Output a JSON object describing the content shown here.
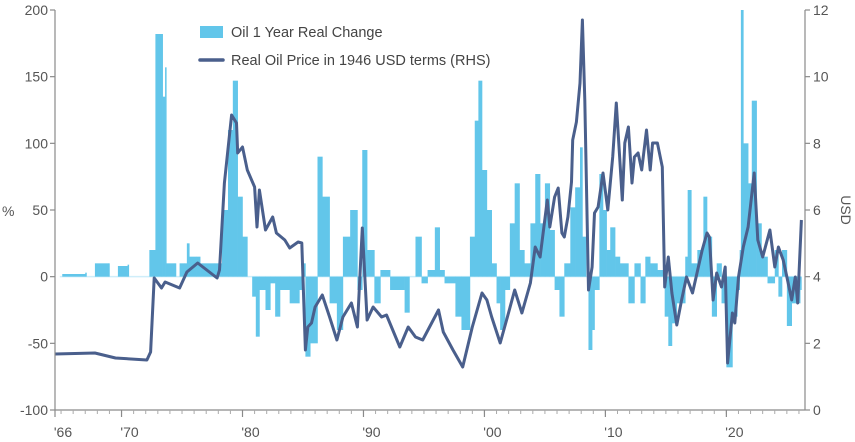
{
  "chart_data": {
    "type": "bar+line",
    "title": "",
    "xlabel": "",
    "ylabel": "%",
    "ylabel_right": "USD",
    "xlim": [
      1964.5,
      2026.5
    ],
    "ylim": [
      -100,
      200
    ],
    "ylim_right": [
      0,
      12
    ],
    "grid": false,
    "legend_placement": "top-center",
    "x_ticks": [
      {
        "value": 1964.5,
        "label": "'66"
      },
      {
        "value": 1970,
        "label": "'70"
      },
      {
        "value": 1980,
        "label": "'80"
      },
      {
        "value": 1990,
        "label": "'90"
      },
      {
        "value": 2000,
        "label": "'00"
      },
      {
        "value": 2010,
        "label": "'10"
      },
      {
        "value": 2020,
        "label": "'20"
      }
    ],
    "y_ticks_left": [
      "-100",
      "-50",
      "0",
      "50",
      "100",
      "150",
      "200"
    ],
    "y_ticks_right": [
      "0",
      "2",
      "4",
      "6",
      "8",
      "10",
      "12"
    ],
    "colors": {
      "bars": "#62C6EA",
      "line": "#4A5F8C",
      "axis": "#8a8a8a"
    },
    "series": [
      {
        "name": "Oil 1 Year Real Change",
        "type": "bar",
        "axis": "left",
        "points": [
          [
            1964.9,
            0
          ],
          [
            1965.1,
            2
          ],
          [
            1967.0,
            3
          ],
          [
            1967.1,
            0
          ],
          [
            1967.7,
            0
          ],
          [
            1967.8,
            10
          ],
          [
            1968.9,
            10
          ],
          [
            1969.0,
            0
          ],
          [
            1969.6,
            0
          ],
          [
            1969.7,
            8
          ],
          [
            1970.5,
            9
          ],
          [
            1970.6,
            0
          ],
          [
            1972.2,
            0
          ],
          [
            1972.3,
            20
          ],
          [
            1972.7,
            20
          ],
          [
            1972.8,
            182
          ],
          [
            1973.3,
            182
          ],
          [
            1973.4,
            135
          ],
          [
            1973.6,
            157
          ],
          [
            1973.7,
            10
          ],
          [
            1974.4,
            10
          ],
          [
            1974.5,
            0
          ],
          [
            1974.8,
            10
          ],
          [
            1975.2,
            10
          ],
          [
            1975.4,
            25
          ],
          [
            1975.6,
            15
          ],
          [
            1976.2,
            15
          ],
          [
            1976.5,
            10
          ],
          [
            1977.7,
            10
          ],
          [
            1978.3,
            50
          ],
          [
            1978.8,
            110
          ],
          [
            1979.2,
            147
          ],
          [
            1979.6,
            60
          ],
          [
            1980.0,
            30
          ],
          [
            1980.4,
            0
          ],
          [
            1980.8,
            -15
          ],
          [
            1981.1,
            -45
          ],
          [
            1981.4,
            -10
          ],
          [
            1981.9,
            -25
          ],
          [
            1982.3,
            -5
          ],
          [
            1982.7,
            -30
          ],
          [
            1983.1,
            -10
          ],
          [
            1983.9,
            -20
          ],
          [
            1984.7,
            -10
          ],
          [
            1985.0,
            10
          ],
          [
            1985.2,
            -60
          ],
          [
            1985.6,
            -50
          ],
          [
            1986.2,
            90
          ],
          [
            1986.6,
            60
          ],
          [
            1987.2,
            -20
          ],
          [
            1987.8,
            -40
          ],
          [
            1988.3,
            30
          ],
          [
            1988.9,
            50
          ],
          [
            1989.5,
            -10
          ],
          [
            1989.9,
            95
          ],
          [
            1990.3,
            20
          ],
          [
            1990.9,
            -20
          ],
          [
            1991.4,
            5
          ],
          [
            1992.2,
            -10
          ],
          [
            1993.4,
            -27
          ],
          [
            1993.8,
            0
          ],
          [
            1994.3,
            30
          ],
          [
            1994.8,
            -5
          ],
          [
            1995.3,
            5
          ],
          [
            1995.9,
            37
          ],
          [
            1996.3,
            5
          ],
          [
            1996.7,
            -5
          ],
          [
            1997.6,
            -30
          ],
          [
            1998.1,
            -40
          ],
          [
            1998.8,
            30
          ],
          [
            1999.2,
            117
          ],
          [
            1999.5,
            147
          ],
          [
            1999.8,
            80
          ],
          [
            2000.2,
            50
          ],
          [
            2000.6,
            10
          ],
          [
            2001.0,
            -20
          ],
          [
            2001.3,
            -40
          ],
          [
            2001.7,
            -10
          ],
          [
            2002.1,
            40
          ],
          [
            2002.5,
            70
          ],
          [
            2002.9,
            20
          ],
          [
            2003.3,
            10
          ],
          [
            2003.8,
            40
          ],
          [
            2004.2,
            77
          ],
          [
            2004.6,
            40
          ],
          [
            2005.0,
            70
          ],
          [
            2005.4,
            35
          ],
          [
            2005.8,
            -10
          ],
          [
            2006.2,
            -30
          ],
          [
            2006.6,
            10
          ],
          [
            2007.1,
            52
          ],
          [
            2007.5,
            67
          ],
          [
            2007.9,
            97
          ],
          [
            2008.1,
            30
          ],
          [
            2008.4,
            0
          ],
          [
            2008.6,
            -55
          ],
          [
            2008.9,
            -40
          ],
          [
            2009.1,
            -10
          ],
          [
            2009.5,
            77
          ],
          [
            2009.8,
            50
          ],
          [
            2010.1,
            20
          ],
          [
            2010.4,
            37
          ],
          [
            2010.8,
            15
          ],
          [
            2011.2,
            10
          ],
          [
            2011.9,
            -20
          ],
          [
            2012.4,
            10
          ],
          [
            2012.9,
            -20
          ],
          [
            2013.3,
            15
          ],
          [
            2013.7,
            10
          ],
          [
            2014.3,
            5
          ],
          [
            2014.9,
            -30
          ],
          [
            2015.2,
            -52
          ],
          [
            2015.5,
            -35
          ],
          [
            2015.9,
            -20
          ],
          [
            2016.6,
            15
          ],
          [
            2016.8,
            65
          ],
          [
            2017.1,
            10
          ],
          [
            2017.6,
            20
          ],
          [
            2018.1,
            60
          ],
          [
            2018.4,
            30
          ],
          [
            2018.8,
            -30
          ],
          [
            2019.2,
            10
          ],
          [
            2019.6,
            -20
          ],
          [
            2020.0,
            -68
          ],
          [
            2020.5,
            -30
          ],
          [
            2020.9,
            -10
          ],
          [
            2021.1,
            20
          ],
          [
            2021.2,
            200
          ],
          [
            2021.4,
            100
          ],
          [
            2021.8,
            70
          ],
          [
            2022.1,
            132
          ],
          [
            2022.5,
            40
          ],
          [
            2022.9,
            15
          ],
          [
            2023.4,
            -5
          ],
          [
            2024.0,
            20
          ],
          [
            2024.3,
            -15
          ],
          [
            2024.6,
            20
          ],
          [
            2025.0,
            -37
          ],
          [
            2025.4,
            -20
          ],
          [
            2025.8,
            -20
          ],
          [
            2026.1,
            -10
          ],
          [
            2026.2,
            0
          ]
        ]
      },
      {
        "name": "Real Oil Price in 1946 USD terms (RHS)",
        "type": "line",
        "axis": "right",
        "points": [
          [
            1964.5,
            1.68
          ],
          [
            1967.8,
            1.71
          ],
          [
            1969.5,
            1.56
          ],
          [
            1972.1,
            1.5
          ],
          [
            1972.4,
            1.74
          ],
          [
            1972.7,
            3.96
          ],
          [
            1973.3,
            3.66
          ],
          [
            1973.6,
            3.84
          ],
          [
            1974.8,
            3.66
          ],
          [
            1975.4,
            4.14
          ],
          [
            1976.3,
            4.41
          ],
          [
            1977.9,
            3.96
          ],
          [
            1978.1,
            4.2
          ],
          [
            1978.5,
            6.81
          ],
          [
            1979.1,
            8.85
          ],
          [
            1979.5,
            8.61
          ],
          [
            1979.6,
            7.71
          ],
          [
            1980.0,
            7.89
          ],
          [
            1980.4,
            7.2
          ],
          [
            1981.0,
            6.69
          ],
          [
            1981.2,
            5.49
          ],
          [
            1981.4,
            6.6
          ],
          [
            1981.9,
            5.4
          ],
          [
            1982.5,
            5.79
          ],
          [
            1982.8,
            5.31
          ],
          [
            1983.5,
            5.1
          ],
          [
            1983.9,
            4.86
          ],
          [
            1984.6,
            5.04
          ],
          [
            1984.9,
            5.01
          ],
          [
            1985.2,
            1.8
          ],
          [
            1985.4,
            2.49
          ],
          [
            1985.7,
            2.61
          ],
          [
            1986.0,
            3.09
          ],
          [
            1986.6,
            3.45
          ],
          [
            1987.2,
            2.79
          ],
          [
            1987.8,
            2.1
          ],
          [
            1988.3,
            2.79
          ],
          [
            1989.0,
            3.21
          ],
          [
            1989.5,
            2.49
          ],
          [
            1989.9,
            5.46
          ],
          [
            1990.3,
            2.7
          ],
          [
            1990.8,
            3.09
          ],
          [
            1991.5,
            2.79
          ],
          [
            1991.9,
            2.85
          ],
          [
            1993.0,
            1.89
          ],
          [
            1993.7,
            2.49
          ],
          [
            1994.3,
            2.19
          ],
          [
            1994.9,
            2.1
          ],
          [
            1996.2,
            3.0
          ],
          [
            1996.6,
            2.34
          ],
          [
            1997.4,
            1.8
          ],
          [
            1998.2,
            1.29
          ],
          [
            1999.0,
            2.49
          ],
          [
            1999.8,
            3.51
          ],
          [
            2000.2,
            3.3
          ],
          [
            2000.6,
            2.79
          ],
          [
            2001.3,
            2.01
          ],
          [
            2001.9,
            2.79
          ],
          [
            2002.5,
            3.6
          ],
          [
            2003.1,
            2.91
          ],
          [
            2003.8,
            3.81
          ],
          [
            2004.2,
            4.89
          ],
          [
            2004.6,
            4.59
          ],
          [
            2005.2,
            6.3
          ],
          [
            2005.4,
            5.49
          ],
          [
            2005.8,
            6.39
          ],
          [
            2006.1,
            6.66
          ],
          [
            2006.4,
            5.31
          ],
          [
            2006.6,
            5.19
          ],
          [
            2006.9,
            5.79
          ],
          [
            2007.2,
            6.84
          ],
          [
            2007.3,
            8.1
          ],
          [
            2007.6,
            8.64
          ],
          [
            2007.9,
            9.81
          ],
          [
            2008.1,
            11.7
          ],
          [
            2008.3,
            9.3
          ],
          [
            2008.6,
            3.6
          ],
          [
            2008.9,
            4.29
          ],
          [
            2009.1,
            5.91
          ],
          [
            2009.4,
            6.09
          ],
          [
            2009.8,
            7.11
          ],
          [
            2010.2,
            6.0
          ],
          [
            2010.6,
            7.59
          ],
          [
            2010.9,
            9.21
          ],
          [
            2011.4,
            6.3
          ],
          [
            2011.6,
            8.01
          ],
          [
            2011.9,
            8.49
          ],
          [
            2012.2,
            6.81
          ],
          [
            2012.4,
            7.59
          ],
          [
            2012.7,
            7.71
          ],
          [
            2013.0,
            7.2
          ],
          [
            2013.4,
            8.4
          ],
          [
            2013.7,
            7.2
          ],
          [
            2013.9,
            8.01
          ],
          [
            2014.3,
            8.01
          ],
          [
            2014.7,
            7.29
          ],
          [
            2014.9,
            3.69
          ],
          [
            2015.2,
            4.59
          ],
          [
            2015.5,
            3.51
          ],
          [
            2015.9,
            2.55
          ],
          [
            2016.3,
            3.3
          ],
          [
            2016.7,
            3.99
          ],
          [
            2017.2,
            3.51
          ],
          [
            2018.0,
            4.8
          ],
          [
            2018.4,
            5.31
          ],
          [
            2018.6,
            5.19
          ],
          [
            2018.9,
            3.3
          ],
          [
            2019.2,
            4.11
          ],
          [
            2019.6,
            3.69
          ],
          [
            2019.9,
            4.29
          ],
          [
            2020.1,
            1.41
          ],
          [
            2020.5,
            2.91
          ],
          [
            2020.7,
            2.61
          ],
          [
            2021.0,
            3.99
          ],
          [
            2021.4,
            4.89
          ],
          [
            2021.8,
            5.49
          ],
          [
            2022.3,
            7.11
          ],
          [
            2022.6,
            5.1
          ],
          [
            2023.0,
            4.59
          ],
          [
            2023.6,
            5.4
          ],
          [
            2024.0,
            4.29
          ],
          [
            2024.3,
            4.89
          ],
          [
            2024.7,
            4.5
          ],
          [
            2025.0,
            3.99
          ],
          [
            2025.4,
            3.3
          ],
          [
            2025.7,
            3.99
          ],
          [
            2025.9,
            3.21
          ],
          [
            2026.2,
            5.7
          ]
        ]
      }
    ]
  }
}
